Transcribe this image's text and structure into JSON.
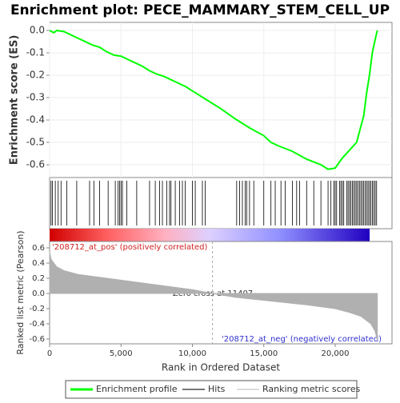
{
  "title": "Enrichment plot: PECE_MAMMARY_STEM_CELL_UP",
  "chart_data": [
    {
      "type": "line",
      "ylabel": "Enrichment score (ES)",
      "grid": true,
      "xlim": [
        0,
        23978
      ],
      "ylim": [
        -0.657,
        0.036
      ],
      "xticks": [
        0,
        5000,
        10000,
        15000,
        20000
      ],
      "yticks": [
        {
          "value": 0,
          "label": "0.0"
        },
        -0.1,
        -0.2,
        -0.3,
        -0.4,
        -0.5,
        -0.6
      ],
      "series": [
        {
          "name": "Enrichment profile",
          "color": "#00ff00",
          "x": [
            0,
            300,
            500,
            1000,
            1500,
            2000,
            2500,
            3000,
            3500,
            4000,
            4500,
            5000,
            5500,
            6000,
            6500,
            7000,
            7500,
            8000,
            8500,
            9000,
            9500,
            10000,
            11000,
            12000,
            13000,
            14000,
            15000,
            15500,
            16000,
            17000,
            18000,
            19000,
            19500,
            20000,
            20500,
            21000,
            21500,
            22000,
            22200,
            22400,
            22600,
            22800,
            22950
          ],
          "values": [
            0.0,
            -0.01,
            0.0,
            -0.005,
            -0.02,
            -0.035,
            -0.05,
            -0.065,
            -0.075,
            -0.095,
            -0.11,
            -0.115,
            -0.13,
            -0.145,
            -0.16,
            -0.18,
            -0.195,
            -0.205,
            -0.22,
            -0.235,
            -0.25,
            -0.27,
            -0.31,
            -0.35,
            -0.395,
            -0.435,
            -0.47,
            -0.5,
            -0.515,
            -0.54,
            -0.575,
            -0.6,
            -0.62,
            -0.615,
            -0.57,
            -0.535,
            -0.5,
            -0.38,
            -0.28,
            -0.2,
            -0.1,
            -0.04,
            0.0
          ]
        }
      ]
    },
    {
      "type": "hits",
      "name": "Hits",
      "color": "#000000",
      "xlim": [
        0,
        23978
      ],
      "x": [
        100,
        200,
        400,
        600,
        800,
        1200,
        1900,
        2800,
        3100,
        3500,
        4100,
        4600,
        4800,
        4900,
        5000,
        5100,
        5400,
        6100,
        7000,
        7400,
        7700,
        7900,
        8200,
        8400,
        8500,
        8800,
        9100,
        9300,
        9500,
        10000,
        10200,
        10700,
        10900,
        13100,
        13300,
        13500,
        13700,
        13800,
        14000,
        14300,
        15000,
        15500,
        15800,
        16200,
        16500,
        17000,
        17300,
        17500,
        18000,
        18500,
        19000,
        19500,
        19700,
        19900,
        20000,
        20100,
        20300,
        20400,
        20500,
        20600,
        20800,
        20900,
        21000,
        21100,
        21200,
        21300,
        21400,
        21500,
        21600,
        21700,
        21800,
        21900,
        22000,
        22100,
        22200,
        22300,
        22400,
        22500,
        22600,
        22700,
        22800,
        22900
      ]
    },
    {
      "type": "area",
      "ylabel": "Ranked list metric (Pearson)",
      "xlabel": "Rank in Ordered Dataset",
      "xlim": [
        0,
        23978
      ],
      "ylim": [
        -0.663,
        0.684
      ],
      "xticks": [
        0,
        {
          "value": 5000,
          "label": "5,000"
        },
        {
          "value": 10000,
          "label": "10,000"
        },
        {
          "value": 15000,
          "label": "15,000"
        },
        {
          "value": 20000,
          "label": "20,000"
        }
      ],
      "yticks": [
        0.6,
        0.4,
        0.2,
        {
          "value": 0,
          "label": "0.0"
        },
        -0.2,
        -0.4,
        -0.6
      ],
      "zero_cross": 11407,
      "annotations": [
        "'208712_at_pos' (positively correlated)",
        "Zero cross at 11407",
        "'208712_at_neg' (negatively correlated)"
      ],
      "series": [
        {
          "name": "Ranking metric scores",
          "color": "#b0b0b0",
          "x": [
            0,
            100,
            500,
            1000,
            2000,
            4000,
            6000,
            8000,
            10000,
            11407,
            13000,
            15500,
            18000,
            20000,
            21000,
            21800,
            22500,
            22800,
            22950
          ],
          "values": [
            0.55,
            0.45,
            0.35,
            0.3,
            0.25,
            0.2,
            0.15,
            0.1,
            0.05,
            0.0,
            -0.05,
            -0.1,
            -0.15,
            -0.2,
            -0.25,
            -0.3,
            -0.4,
            -0.5,
            -0.62
          ]
        }
      ]
    }
  ]
}
